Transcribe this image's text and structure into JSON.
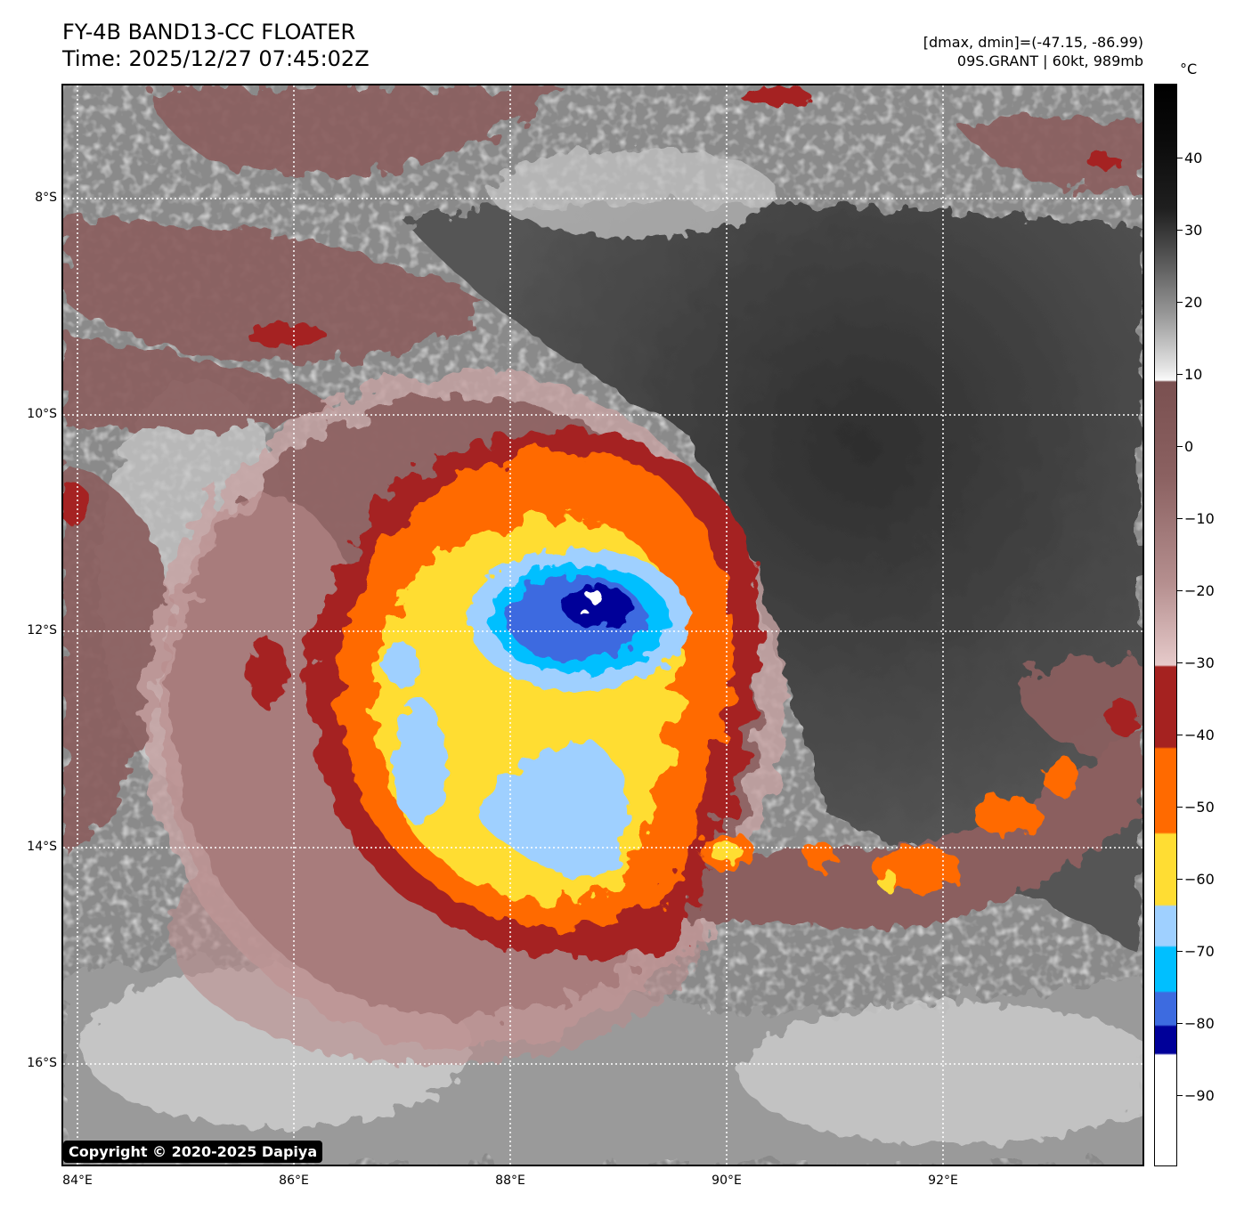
{
  "header": {
    "title": "FY-4B BAND13-CC FLOATER",
    "time": "Time: 2025/12/27 07:45:02Z",
    "range_text": "[dmax, dmin]=(-47.15, -86.99)",
    "storm_text": "09S.GRANT | 60kt, 989mb"
  },
  "colorbar": {
    "unit": "°C",
    "ticks": [
      "40",
      "30",
      "20",
      "10",
      "0",
      "−10",
      "−20",
      "−30",
      "−40",
      "−50",
      "−60",
      "−70",
      "−80",
      "−90"
    ],
    "segments": [
      {
        "from": 48,
        "to": 10,
        "color": "gray-ramp"
      },
      {
        "from": 10,
        "to": -30,
        "color": "#8b5f5f"
      },
      {
        "from": -30,
        "to": -41,
        "color": "#a52220"
      },
      {
        "from": -41,
        "to": -53,
        "color": "#ff6a00"
      },
      {
        "from": -53,
        "to": -63,
        "color": "#ffdd33"
      },
      {
        "from": -63,
        "to": -69,
        "color": "#9fd0ff"
      },
      {
        "from": -69,
        "to": -76,
        "color": "#00bfff"
      },
      {
        "from": -76,
        "to": -80,
        "color": "#3d6be0"
      },
      {
        "from": -80,
        "to": -84,
        "color": "#000099"
      },
      {
        "from": -84,
        "to": -100,
        "color": "#ffffff"
      }
    ]
  },
  "axes": {
    "lat_labels": [
      "8°S",
      "10°S",
      "12°S",
      "14°S",
      "16°S"
    ],
    "lon_labels": [
      "84°E",
      "86°E",
      "88°E",
      "90°E",
      "92°E"
    ]
  },
  "footer": {
    "copyright": "Copyright © 2020-2025 Dapiya"
  },
  "colors": {
    "cold_brown": "#8b5f5f",
    "dark_red": "#a52220",
    "orange": "#ff6a00",
    "yellow": "#ffdd33",
    "light_blue": "#9fd0ff",
    "cyan": "#00bfff",
    "royal_blue": "#3d6be0",
    "navy": "#000099"
  }
}
